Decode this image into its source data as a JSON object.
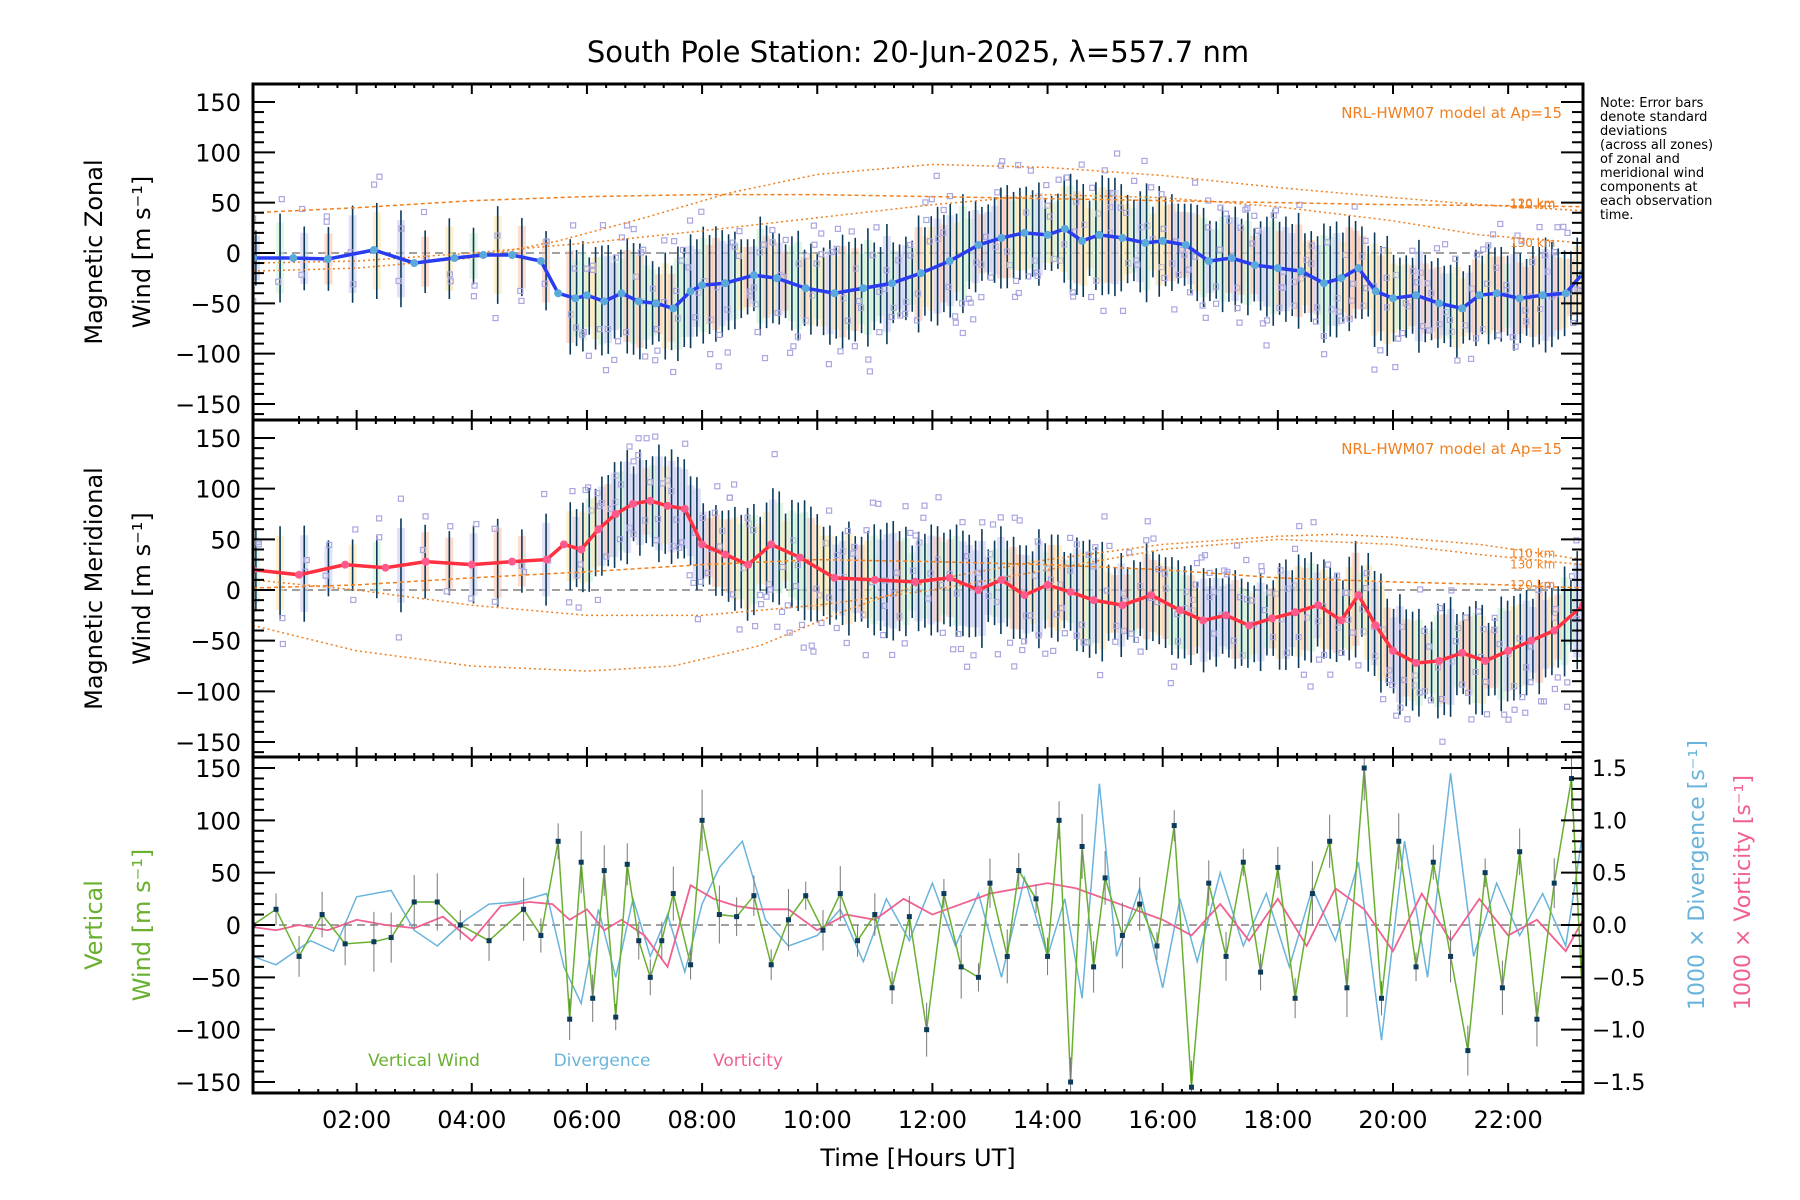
{
  "title": "South Pole Station: 20-Jun-2025, λ=557.7 nm",
  "note": [
    "Note: Error bars",
    "denote standard",
    "deviations",
    "(across all zones)",
    "of zonal and",
    "meridional wind",
    "components at",
    "each observation",
    "time."
  ],
  "xlabel": "Time [Hours UT]",
  "xticks": [
    "02:00",
    "04:00",
    "06:00",
    "08:00",
    "10:00",
    "12:00",
    "14:00",
    "16:00",
    "18:00",
    "20:00",
    "22:00"
  ],
  "colors": {
    "zonal_line": "#2a3cf0",
    "zonal_marker": "#5aa9dc",
    "meridional_line": "#ff3040",
    "meridional_marker": "#ff5a8c",
    "errorbar": "#0b3a5a",
    "scatter": "#a9a6e0",
    "model": "#f08020",
    "vertical": "#6ab030",
    "divergence": "#6ab4dc",
    "vorticity": "#f06090",
    "zero_line": "#808080"
  },
  "chart_data": [
    {
      "type": "line",
      "panel": "zonal",
      "ylabel": [
        "Magnetic Zonal",
        "Wind [m s⁻¹]"
      ],
      "yticks": [
        "150",
        "100",
        "50",
        "0",
        "−50",
        "−100",
        "−150"
      ],
      "ylim": [
        -165,
        165
      ],
      "xlim": [
        0.2,
        23.3
      ],
      "model_label": "NRL-HWM07 model at Ap=15",
      "model_curves": [
        {
          "name": "110 km",
          "x": [
            0.2,
            2,
            4,
            5.5,
            7,
            8.5,
            10,
            12,
            14,
            16,
            18,
            20,
            21.5,
            23.3
          ],
          "y": [
            -18,
            -15,
            -5,
            12,
            35,
            60,
            78,
            88,
            85,
            77,
            65,
            55,
            48,
            42
          ]
        },
        {
          "name": "120 km",
          "x": [
            0.2,
            2,
            4,
            6,
            8,
            10,
            12,
            14,
            16,
            18,
            20,
            22,
            23.3
          ],
          "y": [
            40,
            45,
            52,
            56,
            58,
            58,
            56,
            54,
            52,
            50,
            48,
            47,
            46
          ]
        },
        {
          "name": "130 km",
          "x": [
            0.2,
            2,
            4,
            6,
            8,
            10,
            12,
            14,
            16,
            18,
            20,
            21.5,
            23.3
          ],
          "y": [
            -10,
            -8,
            0,
            10,
            22,
            35,
            48,
            58,
            55,
            46,
            32,
            18,
            10
          ]
        }
      ],
      "series": [
        {
          "name": "Zonal Wind",
          "x": [
            0.2,
            0.9,
            1.5,
            2.3,
            3.0,
            3.7,
            4.2,
            4.7,
            5.2,
            5.5,
            5.8,
            6.0,
            6.3,
            6.6,
            6.9,
            7.2,
            7.5,
            7.8,
            8.0,
            8.4,
            8.9,
            9.3,
            9.8,
            10.3,
            10.8,
            11.3,
            11.8,
            12.3,
            12.8,
            13.2,
            13.6,
            14.0,
            14.3,
            14.6,
            14.9,
            15.3,
            15.7,
            16.0,
            16.4,
            16.8,
            17.2,
            17.6,
            18.0,
            18.4,
            18.8,
            19.1,
            19.4,
            19.7,
            20.0,
            20.4,
            20.8,
            21.2,
            21.5,
            21.8,
            22.2,
            22.6,
            23.0,
            23.3
          ],
          "y": [
            -5,
            -5,
            -6,
            3,
            -10,
            -5,
            -2,
            -2,
            -8,
            -40,
            -45,
            -42,
            -48,
            -40,
            -48,
            -50,
            -55,
            -38,
            -32,
            -30,
            -22,
            -25,
            -35,
            -40,
            -35,
            -30,
            -20,
            -8,
            8,
            15,
            20,
            18,
            24,
            12,
            18,
            15,
            10,
            12,
            8,
            -8,
            -5,
            -12,
            -15,
            -18,
            -30,
            -25,
            -15,
            -38,
            -45,
            -42,
            -50,
            -55,
            -42,
            -40,
            -45,
            -42,
            -40,
            -20
          ]
        }
      ]
    },
    {
      "type": "line",
      "panel": "meridional",
      "ylabel": [
        "Magnetic Meridional",
        "Wind [m s⁻¹]"
      ],
      "yticks": [
        "150",
        "100",
        "50",
        "0",
        "−50",
        "−100",
        "−150"
      ],
      "ylim": [
        -165,
        165
      ],
      "xlim": [
        0.2,
        23.3
      ],
      "model_label": "NRL-HWM07 model at Ap=15",
      "model_curves": [
        {
          "name": "110 km",
          "x": [
            0.2,
            2,
            4,
            6,
            7.5,
            9,
            10.5,
            12,
            14,
            16,
            18,
            19,
            20,
            21.5,
            23.3
          ],
          "y": [
            -35,
            -60,
            -75,
            -80,
            -75,
            -55,
            -20,
            10,
            30,
            45,
            53,
            55,
            52,
            45,
            30
          ]
        },
        {
          "name": "120 km",
          "x": [
            0.2,
            2,
            4,
            6,
            8,
            10,
            12,
            14,
            16,
            18,
            20,
            22,
            23.3
          ],
          "y": [
            2,
            5,
            12,
            18,
            25,
            30,
            28,
            25,
            20,
            12,
            8,
            5,
            2
          ]
        },
        {
          "name": "130 km",
          "x": [
            0.2,
            2,
            4,
            6,
            8,
            10,
            12,
            14,
            16,
            18,
            20,
            21.5,
            23.3
          ],
          "y": [
            10,
            0,
            -15,
            -25,
            -25,
            -15,
            0,
            20,
            40,
            50,
            45,
            35,
            25
          ]
        }
      ],
      "series": [
        {
          "name": "Meridional Wind",
          "x": [
            0.2,
            1.0,
            1.8,
            2.5,
            3.2,
            4.0,
            4.7,
            5.3,
            5.6,
            5.9,
            6.2,
            6.5,
            6.8,
            7.1,
            7.4,
            7.7,
            8.0,
            8.4,
            8.8,
            9.2,
            9.7,
            10.3,
            11.0,
            11.7,
            12.3,
            12.8,
            13.2,
            13.6,
            14.0,
            14.4,
            14.8,
            15.3,
            15.8,
            16.3,
            16.7,
            17.1,
            17.5,
            17.9,
            18.3,
            18.7,
            19.1,
            19.4,
            19.7,
            20.0,
            20.4,
            20.8,
            21.2,
            21.6,
            22.0,
            22.4,
            22.8,
            23.3
          ],
          "y": [
            20,
            15,
            25,
            22,
            28,
            25,
            28,
            30,
            45,
            40,
            60,
            75,
            85,
            88,
            83,
            80,
            45,
            35,
            25,
            45,
            32,
            12,
            10,
            8,
            12,
            0,
            10,
            -5,
            5,
            -2,
            -10,
            -15,
            -5,
            -20,
            -30,
            -25,
            -35,
            -28,
            -22,
            -15,
            -30,
            -5,
            -35,
            -60,
            -72,
            -70,
            -62,
            -70,
            -60,
            -50,
            -40,
            -15
          ]
        }
      ]
    },
    {
      "type": "line",
      "panel": "vertical",
      "ylabel": [
        "Vertical",
        "Wind [m s⁻¹]"
      ],
      "y2label_divergence": "1000 × Divergence [s⁻¹]",
      "y2label_vorticity": "1000 × Vorticity [s⁻¹]",
      "yticks": [
        "150",
        "100",
        "50",
        "0",
        "−50",
        "−100",
        "−150"
      ],
      "y2ticks": [
        "1.5",
        "1.0",
        "0.5",
        "0.0",
        "−0.5",
        "−1.0",
        "−1.5"
      ],
      "ylim": [
        -160,
        160
      ],
      "y2lim": [
        -1.55,
        1.55
      ],
      "xlim": [
        0.2,
        23.3
      ],
      "legend": [
        "Vertical Wind",
        "Divergence",
        "Vorticity"
      ],
      "series": [
        {
          "name": "Vertical Wind",
          "x": [
            0.2,
            0.6,
            1.0,
            1.4,
            1.8,
            2.3,
            2.6,
            3.0,
            3.4,
            3.8,
            4.3,
            4.9,
            5.2,
            5.5,
            5.7,
            5.9,
            6.1,
            6.3,
            6.5,
            6.7,
            6.9,
            7.1,
            7.3,
            7.5,
            7.8,
            8.0,
            8.3,
            8.6,
            8.9,
            9.2,
            9.5,
            9.8,
            10.1,
            10.4,
            10.7,
            11.0,
            11.3,
            11.6,
            11.9,
            12.2,
            12.5,
            12.8,
            13.0,
            13.3,
            13.5,
            13.8,
            14.0,
            14.2,
            14.4,
            14.6,
            14.8,
            15.0,
            15.3,
            15.6,
            15.9,
            16.2,
            16.5,
            16.8,
            17.1,
            17.4,
            17.7,
            18.0,
            18.3,
            18.6,
            18.9,
            19.2,
            19.5,
            19.8,
            20.1,
            20.4,
            20.7,
            21.0,
            21.3,
            21.6,
            21.9,
            22.2,
            22.5,
            22.8,
            23.1,
            23.3
          ],
          "y": [
            0,
            15,
            -30,
            10,
            -18,
            -16,
            -12,
            22,
            22,
            0,
            -15,
            15,
            -10,
            80,
            -90,
            60,
            -70,
            52,
            -88,
            58,
            -15,
            -50,
            -15,
            30,
            -38,
            100,
            10,
            8,
            28,
            -38,
            5,
            28,
            -5,
            30,
            -15,
            10,
            -60,
            8,
            -100,
            30,
            -40,
            -50,
            40,
            -30,
            52,
            25,
            -30,
            100,
            -150,
            75,
            -40,
            45,
            -10,
            20,
            -20,
            95,
            -155,
            40,
            -30,
            60,
            -45,
            55,
            -70,
            30,
            80,
            -60,
            150,
            -70,
            80,
            -40,
            60,
            -30,
            -120,
            50,
            -60,
            70,
            -90,
            40,
            140,
            -80
          ]
        },
        {
          "name": "Divergence",
          "x": [
            0.2,
            0.6,
            1.2,
            1.6,
            2.0,
            2.6,
            3.0,
            3.4,
            3.9,
            4.3,
            4.8,
            5.3,
            5.6,
            5.9,
            6.2,
            6.5,
            6.8,
            7.1,
            7.4,
            7.7,
            8.0,
            8.3,
            8.7,
            9.1,
            9.5,
            10.0,
            10.4,
            10.8,
            11.2,
            11.6,
            12.0,
            12.4,
            12.8,
            13.2,
            13.6,
            14.0,
            14.3,
            14.6,
            14.9,
            15.2,
            15.6,
            16.0,
            16.3,
            16.6,
            17.0,
            17.4,
            17.8,
            18.2,
            18.6,
            19.0,
            19.4,
            19.8,
            20.2,
            20.6,
            21.0,
            21.4,
            21.8,
            22.2,
            22.6,
            23.0,
            23.3
          ],
          "y": [
            -0.3,
            -0.38,
            -0.15,
            -0.25,
            0.27,
            0.33,
            -0.05,
            -0.2,
            0.05,
            0.2,
            0.22,
            0.3,
            -0.4,
            -0.75,
            0.15,
            -0.5,
            0.25,
            -0.3,
            0.1,
            -0.45,
            0.2,
            0.55,
            0.8,
            0.05,
            -0.2,
            -0.1,
            0.15,
            -0.35,
            0.25,
            -0.15,
            0.4,
            -0.2,
            0.3,
            -0.5,
            0.45,
            -0.3,
            0.25,
            -0.7,
            1.35,
            -0.3,
            0.35,
            -0.6,
            0.25,
            -0.35,
            0.5,
            -0.2,
            0.3,
            -0.4,
            0.35,
            -0.15,
            0.6,
            -1.1,
            0.8,
            -0.5,
            1.45,
            -0.3,
            0.4,
            -0.1,
            0.3,
            -0.2,
            0.9
          ]
        },
        {
          "name": "Vorticity",
          "x": [
            0.2,
            0.6,
            1.0,
            1.5,
            2.0,
            2.5,
            3.0,
            3.5,
            4.0,
            4.5,
            5.0,
            5.4,
            5.7,
            6.0,
            6.3,
            6.6,
            7.0,
            7.4,
            7.8,
            8.2,
            8.6,
            9.0,
            9.5,
            10.0,
            10.5,
            11.0,
            11.5,
            12.0,
            12.5,
            13.0,
            13.5,
            14.0,
            14.5,
            15.0,
            15.5,
            16.0,
            16.5,
            17.0,
            17.5,
            18.0,
            18.5,
            19.0,
            19.5,
            20.0,
            20.5,
            21.0,
            21.5,
            22.0,
            22.5,
            23.0,
            23.3
          ],
          "y": [
            -0.02,
            -0.05,
            0.0,
            -0.05,
            0.05,
            0.0,
            -0.03,
            0.08,
            -0.15,
            0.18,
            0.22,
            0.2,
            0.05,
            0.15,
            -0.05,
            0.05,
            -0.1,
            -0.4,
            0.38,
            0.25,
            0.18,
            0.15,
            0.15,
            -0.05,
            0.1,
            0.05,
            0.25,
            0.1,
            0.2,
            0.3,
            0.35,
            0.4,
            0.35,
            0.25,
            0.15,
            0.05,
            -0.1,
            0.2,
            -0.15,
            0.25,
            -0.2,
            0.35,
            0.15,
            -0.25,
            0.3,
            -0.15,
            0.25,
            -0.1,
            0.05,
            -0.25,
            0.05
          ]
        }
      ]
    }
  ]
}
